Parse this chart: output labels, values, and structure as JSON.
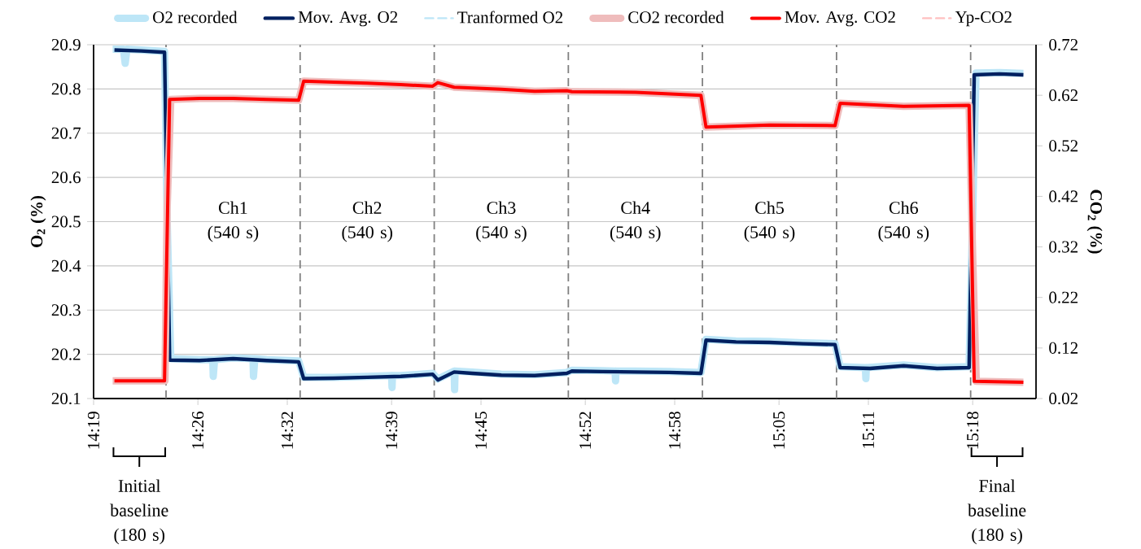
{
  "chart_data": {
    "type": "line",
    "ylabel": "O$_{2}$ (%)",
    "y2label": "CO$_{2}$ (%)",
    "xlim": [
      14.316667,
      15.370833
    ],
    "xticks": [
      {
        "value": 14.316667,
        "label": "14:19"
      },
      {
        "value": 14.433333,
        "label": "14:26"
      },
      {
        "value": 14.533333,
        "label": "14:32"
      },
      {
        "value": 14.65,
        "label": "14:39"
      },
      {
        "value": 14.75,
        "label": "14:45"
      },
      {
        "value": 14.866667,
        "label": "14:52"
      },
      {
        "value": 14.966667,
        "label": "14:58"
      },
      {
        "value": 15.083333,
        "label": "15:05"
      },
      {
        "value": 15.183333,
        "label": "15:11"
      },
      {
        "value": 15.3,
        "label": "15:18"
      }
    ],
    "ylim": [
      20.1,
      20.9
    ],
    "yticks": [
      20.1,
      20.2,
      20.3,
      20.4,
      20.5,
      20.6,
      20.7,
      20.8,
      20.9
    ],
    "y2lim": [
      0.02,
      0.72
    ],
    "y2ticks": [
      0.02,
      0.12,
      0.22,
      0.32,
      0.42,
      0.52,
      0.62,
      0.72
    ],
    "grid": "y",
    "legend": "top",
    "series": [
      {
        "name": "O2 recorded",
        "color": "#bde6f7",
        "line_style": "solid",
        "x": [
          14.338,
          14.35,
          14.352,
          14.354,
          14.37,
          14.396,
          14.399,
          14.403,
          14.4352,
          14.45,
          14.4505,
          14.452,
          14.4727,
          14.495,
          14.4955,
          14.497,
          14.5102,
          14.546,
          14.5517,
          14.5852,
          14.6227,
          14.65,
          14.6505,
          14.651,
          14.6602,
          14.696,
          14.7017,
          14.72,
          14.7205,
          14.721,
          14.74,
          14.7727,
          14.81,
          14.846,
          14.8517,
          14.8852,
          14.9,
          14.9005,
          14.901,
          14.9227,
          14.9602,
          14.996,
          15.0017,
          15.0352,
          15.0727,
          15.1102,
          15.146,
          15.1517,
          15.18,
          15.1805,
          15.181,
          15.2227,
          15.2602,
          15.296,
          15.3037,
          15.33,
          15.3567
        ],
        "values": [
          20.89,
          20.89,
          20.858,
          20.89,
          20.888,
          20.885,
          20.5,
          20.19,
          20.188,
          20.188,
          20.15,
          20.188,
          20.192,
          20.19,
          20.15,
          20.19,
          20.188,
          20.185,
          20.148,
          20.148,
          20.15,
          20.152,
          20.125,
          20.152,
          20.152,
          20.157,
          20.144,
          20.162,
          20.12,
          20.162,
          20.16,
          20.155,
          20.154,
          20.159,
          20.164,
          20.163,
          20.162,
          20.14,
          20.162,
          20.162,
          20.161,
          20.159,
          20.234,
          20.23,
          20.229,
          20.226,
          20.224,
          20.172,
          20.17,
          20.145,
          20.17,
          20.176,
          20.17,
          20.172,
          20.836,
          20.837,
          20.835
        ]
      },
      {
        "name": "Mov. Avg. O2",
        "color": "#002060",
        "line_style": "solid",
        "x": [
          14.34,
          14.37,
          14.396,
          14.4017,
          14.4352,
          14.4727,
          14.5102,
          14.546,
          14.5517,
          14.5852,
          14.6227,
          14.6602,
          14.696,
          14.7017,
          14.72,
          14.74,
          14.7727,
          14.81,
          14.846,
          14.8517,
          14.8852,
          14.9227,
          14.9602,
          14.996,
          15.0017,
          15.0352,
          15.0727,
          15.1102,
          15.146,
          15.1517,
          15.1852,
          15.2227,
          15.2602,
          15.296,
          15.3017,
          15.33,
          15.3567
        ],
        "values": [
          20.888,
          20.886,
          20.883,
          20.187,
          20.186,
          20.19,
          20.186,
          20.183,
          20.145,
          20.146,
          20.148,
          20.15,
          20.155,
          20.142,
          20.16,
          20.157,
          20.153,
          20.152,
          20.157,
          20.162,
          20.161,
          20.16,
          20.159,
          20.157,
          20.232,
          20.228,
          20.227,
          20.224,
          20.222,
          20.17,
          20.168,
          20.174,
          20.168,
          20.17,
          20.832,
          20.834,
          20.832
        ]
      },
      {
        "name": "Tranformed O2",
        "color": "#bde6f7",
        "line_style": "dashed"
      },
      {
        "name": "CO2 recorded",
        "color": "#efbcbc",
        "line_style": "solid",
        "axis": "y2",
        "x": [
          14.338,
          14.3965,
          14.399,
          14.403,
          14.4352,
          14.4727,
          14.5102,
          14.546,
          14.5517,
          14.5852,
          14.6227,
          14.6602,
          14.696,
          14.7017,
          14.72,
          14.7727,
          14.81,
          14.846,
          14.8517,
          14.9227,
          14.996,
          15.0017,
          15.0727,
          15.146,
          15.1517,
          15.2227,
          15.296,
          15.3,
          15.304,
          15.3567
        ],
        "values": [
          0.055,
          0.055,
          0.4,
          0.612,
          0.614,
          0.614,
          0.612,
          0.61,
          0.648,
          0.646,
          0.644,
          0.641,
          0.638,
          0.645,
          0.636,
          0.632,
          0.628,
          0.629,
          0.627,
          0.626,
          0.62,
          0.557,
          0.561,
          0.56,
          0.604,
          0.598,
          0.6,
          0.3,
          0.054,
          0.052
        ]
      },
      {
        "name": "Mov. Avg. CO2",
        "color": "#ff0000",
        "line_style": "solid",
        "axis": "y2",
        "x": [
          14.34,
          14.396,
          14.4017,
          14.4352,
          14.4727,
          14.5102,
          14.546,
          14.5517,
          14.5852,
          14.6227,
          14.6602,
          14.696,
          14.7017,
          14.72,
          14.7727,
          14.81,
          14.846,
          14.8517,
          14.9227,
          14.996,
          15.0017,
          15.0727,
          15.146,
          15.1517,
          15.2227,
          15.296,
          15.3017,
          15.3567
        ],
        "values": [
          0.055,
          0.055,
          0.612,
          0.614,
          0.614,
          0.612,
          0.61,
          0.648,
          0.646,
          0.644,
          0.641,
          0.638,
          0.645,
          0.636,
          0.632,
          0.628,
          0.629,
          0.627,
          0.626,
          0.62,
          0.557,
          0.561,
          0.56,
          0.604,
          0.598,
          0.6,
          0.054,
          0.052
        ]
      },
      {
        "name": "Yp-CO2",
        "color": "#ffc0c0",
        "line_style": "dashed",
        "axis": "y2"
      }
    ],
    "ref_lines": [
      {
        "axis": "x",
        "value": 14.3977,
        "color": "#808080",
        "line_style": "dashed"
      },
      {
        "axis": "x",
        "value": 14.5477,
        "color": "#808080",
        "line_style": "dashed"
      },
      {
        "axis": "x",
        "value": 14.6977,
        "color": "#808080",
        "line_style": "dashed"
      },
      {
        "axis": "x",
        "value": 14.8477,
        "color": "#808080",
        "line_style": "dashed"
      },
      {
        "axis": "x",
        "value": 14.9977,
        "color": "#808080",
        "line_style": "dashed"
      },
      {
        "axis": "x",
        "value": 15.1477,
        "color": "#808080",
        "line_style": "dashed"
      },
      {
        "axis": "x",
        "value": 15.2977,
        "color": "#808080",
        "line_style": "dashed"
      }
    ],
    "annotations": [
      "Initial baseline (180 s)",
      "Ch1 (540 s)",
      "Ch2 (540 s)",
      "Ch3 (540 s)",
      "Ch4 (540 s)",
      "Ch5 (540 s)",
      "Ch6 (540 s)",
      "Final baseline (180 s)"
    ]
  }
}
